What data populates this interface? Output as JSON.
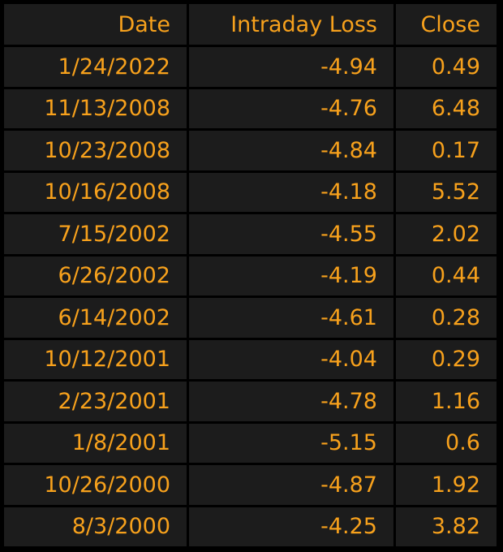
{
  "table": {
    "header": [
      "Date",
      "Intraday Loss",
      "Close"
    ],
    "rows": [
      [
        "1/24/2022",
        "-4.94",
        "0.49"
      ],
      [
        "11/13/2008",
        "-4.76",
        "6.48"
      ],
      [
        "10/23/2008",
        "-4.84",
        "0.17"
      ],
      [
        "10/16/2008",
        "-4.18",
        "5.52"
      ],
      [
        "7/15/2002",
        "-4.55",
        "2.02"
      ],
      [
        "6/26/2002",
        "-4.19",
        "0.44"
      ],
      [
        "6/14/2002",
        "-4.61",
        "0.28"
      ],
      [
        "10/12/2001",
        "-4.04",
        "0.29"
      ],
      [
        "2/23/2001",
        "-4.78",
        "1.16"
      ],
      [
        "1/8/2001",
        "-5.15",
        "0.6"
      ],
      [
        "10/26/2000",
        "-4.87",
        "1.92"
      ],
      [
        "8/3/2000",
        "-4.25",
        "3.82"
      ]
    ]
  }
}
